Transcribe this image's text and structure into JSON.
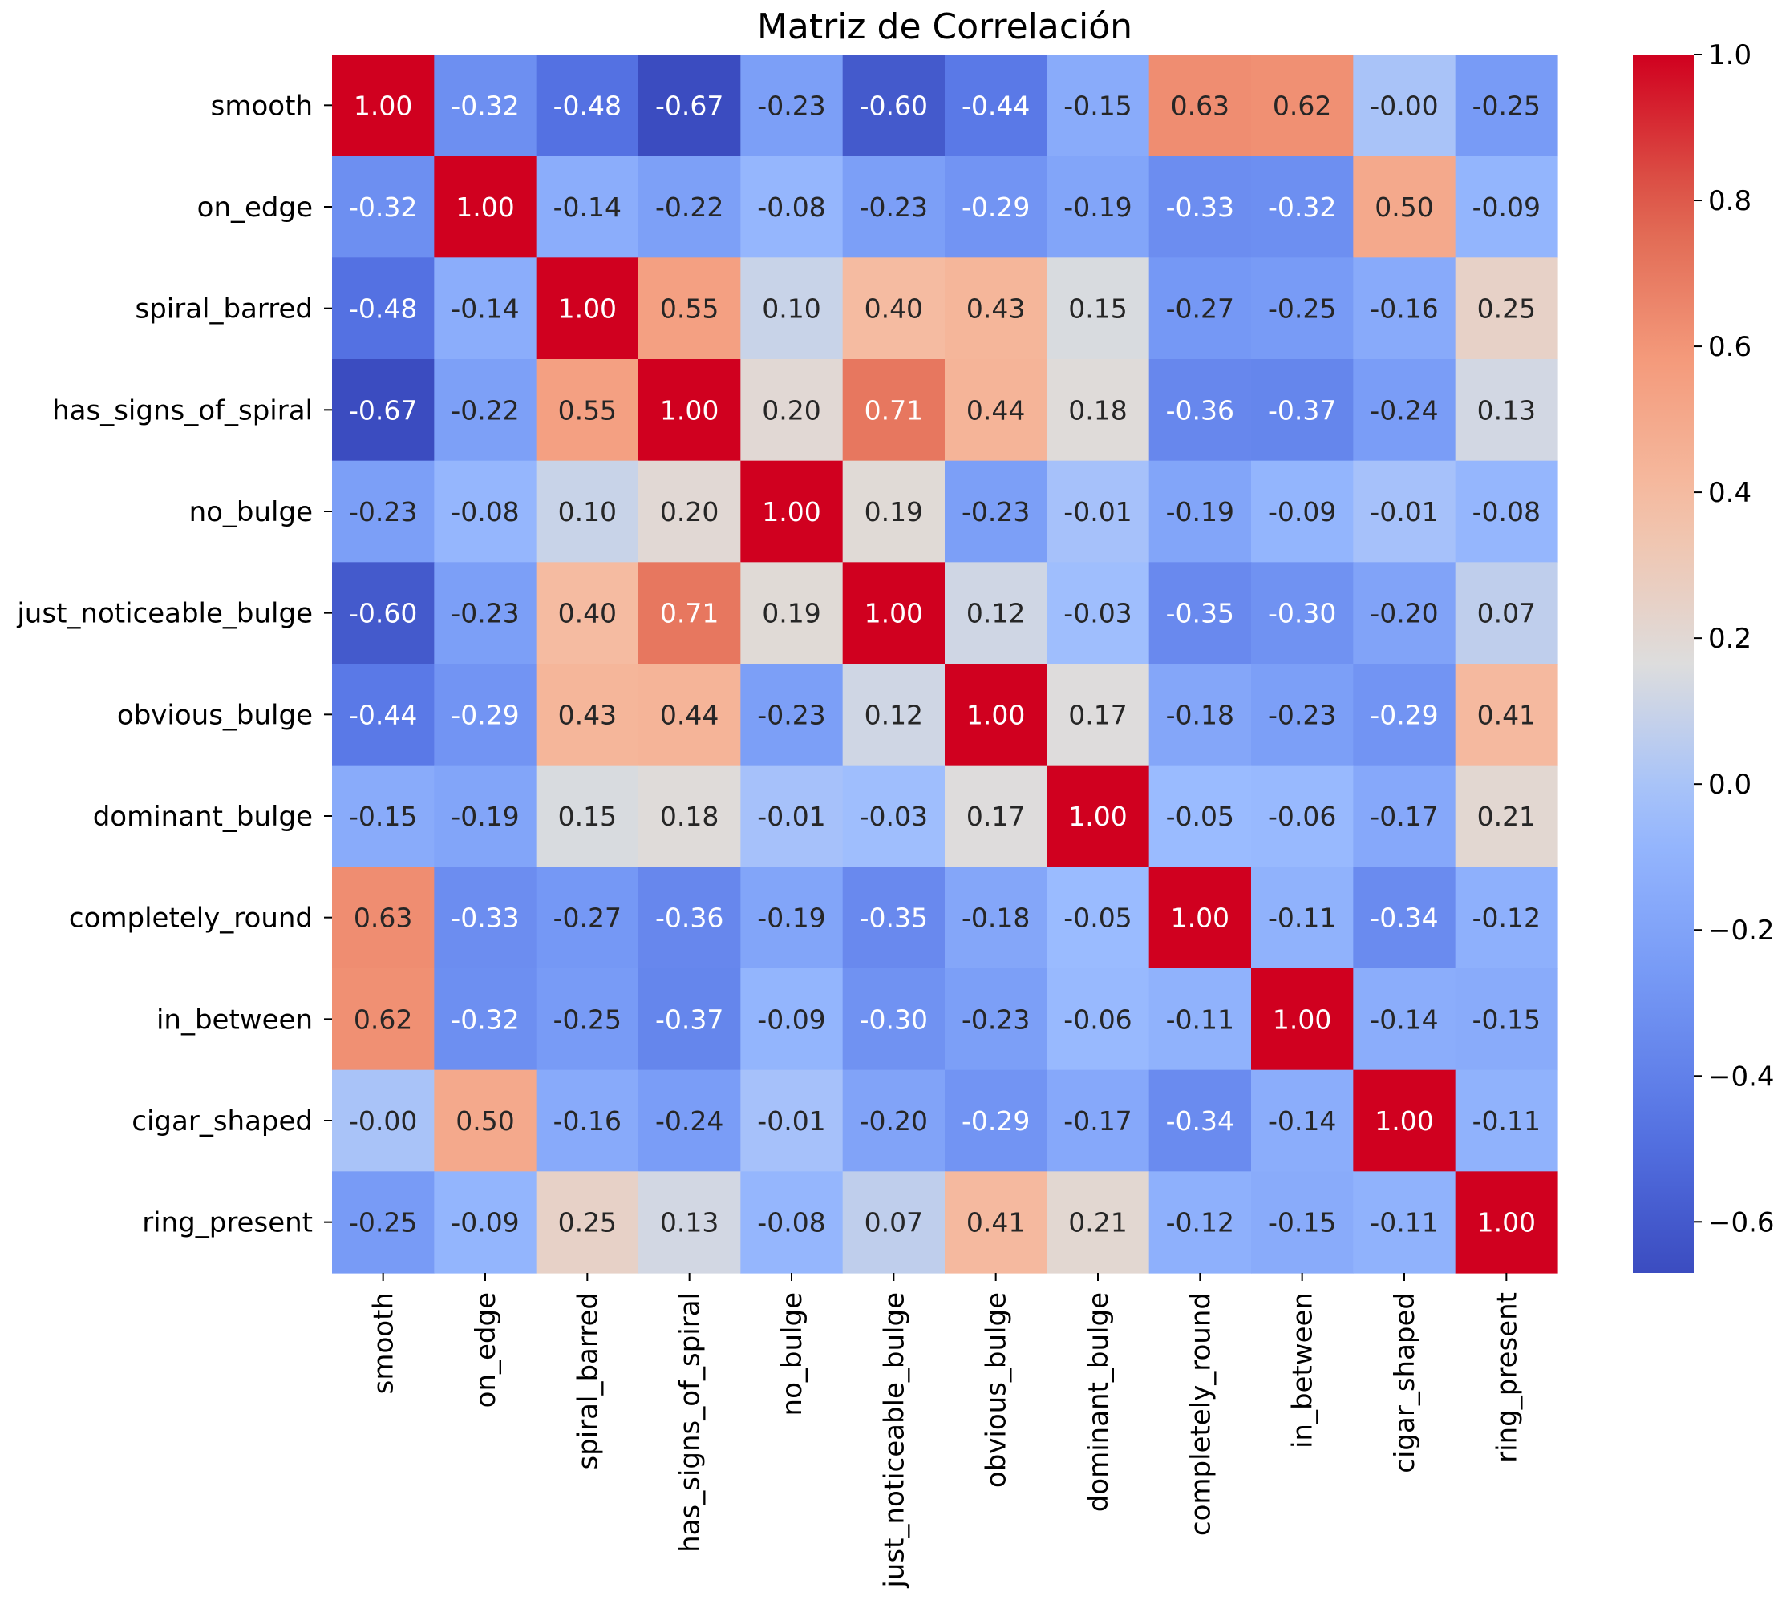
{
  "chart_data": {
    "type": "heatmap",
    "title": "Matriz de Correlación",
    "xlabel": "",
    "ylabel": "",
    "colormap": "coolwarm",
    "vmin": -0.67,
    "vmax": 1.0,
    "labels": [
      "smooth",
      "on_edge",
      "spiral_barred",
      "has_signs_of_spiral",
      "no_bulge",
      "just_noticeable_bulge",
      "obvious_bulge",
      "dominant_bulge",
      "completely_round",
      "in_between",
      "cigar_shaped",
      "ring_present"
    ],
    "matrix": [
      [
        1.0,
        -0.32,
        -0.48,
        -0.67,
        -0.23,
        -0.6,
        -0.44,
        -0.15,
        0.63,
        0.62,
        -0.0,
        -0.25
      ],
      [
        -0.32,
        1.0,
        -0.14,
        -0.22,
        -0.08,
        -0.23,
        -0.29,
        -0.19,
        -0.33,
        -0.32,
        0.5,
        -0.09
      ],
      [
        -0.48,
        -0.14,
        1.0,
        0.55,
        0.1,
        0.4,
        0.43,
        0.15,
        -0.27,
        -0.25,
        -0.16,
        0.25
      ],
      [
        -0.67,
        -0.22,
        0.55,
        1.0,
        0.2,
        0.71,
        0.44,
        0.18,
        -0.36,
        -0.37,
        -0.24,
        0.13
      ],
      [
        -0.23,
        -0.08,
        0.1,
        0.2,
        1.0,
        0.19,
        -0.23,
        -0.01,
        -0.19,
        -0.09,
        -0.01,
        -0.08
      ],
      [
        -0.6,
        -0.23,
        0.4,
        0.71,
        0.19,
        1.0,
        0.12,
        -0.03,
        -0.35,
        -0.3,
        -0.2,
        0.07
      ],
      [
        -0.44,
        -0.29,
        0.43,
        0.44,
        -0.23,
        0.12,
        1.0,
        0.17,
        -0.18,
        -0.23,
        -0.29,
        0.41
      ],
      [
        -0.15,
        -0.19,
        0.15,
        0.18,
        -0.01,
        -0.03,
        0.17,
        1.0,
        -0.05,
        -0.06,
        -0.17,
        0.21
      ],
      [
        0.63,
        -0.33,
        -0.27,
        -0.36,
        -0.19,
        -0.35,
        -0.18,
        -0.05,
        1.0,
        -0.11,
        -0.34,
        -0.12
      ],
      [
        0.62,
        -0.32,
        -0.25,
        -0.37,
        -0.09,
        -0.3,
        -0.23,
        -0.06,
        -0.11,
        1.0,
        -0.14,
        -0.15
      ],
      [
        -0.0,
        0.5,
        -0.16,
        -0.24,
        -0.01,
        -0.2,
        -0.29,
        -0.17,
        -0.34,
        -0.14,
        1.0,
        -0.11
      ],
      [
        -0.25,
        -0.09,
        0.25,
        0.13,
        -0.08,
        0.07,
        0.41,
        0.21,
        -0.12,
        -0.15,
        -0.11,
        1.0
      ]
    ],
    "colorbar_ticks": [
      1.0,
      0.8,
      0.6,
      0.4,
      0.2,
      0.0,
      -0.2,
      -0.4,
      -0.6
    ],
    "colorbar_tick_labels": [
      "1.0",
      "0.8",
      "0.6",
      "0.4",
      "0.2",
      "0.0",
      "−0.2",
      "−0.4",
      "−0.6"
    ]
  }
}
